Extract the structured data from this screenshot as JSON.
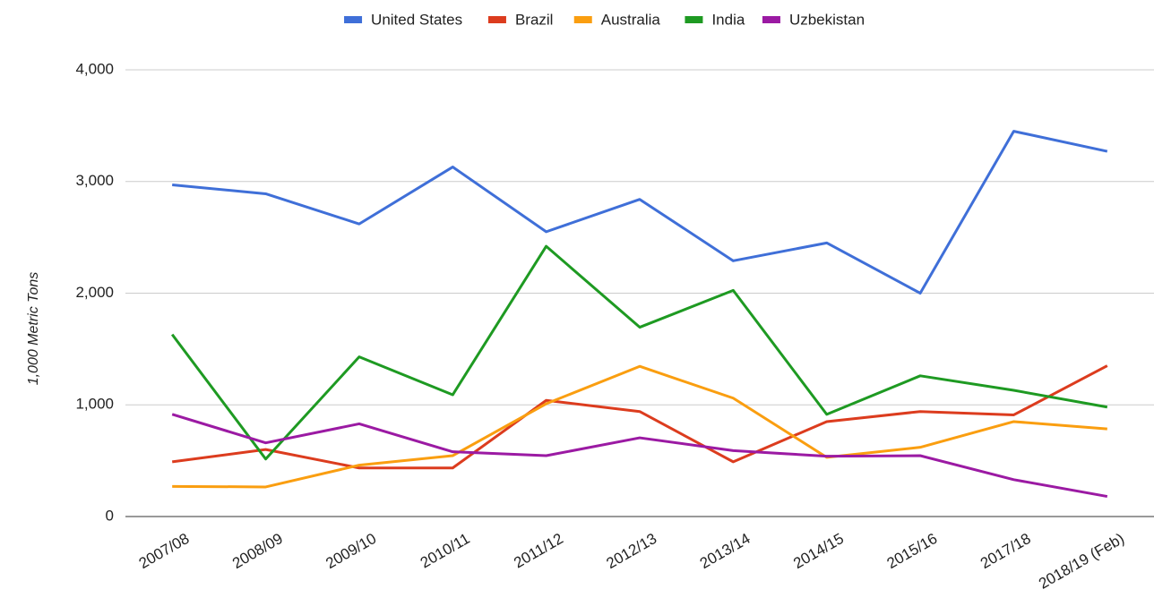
{
  "chart_data": {
    "type": "line",
    "y_label": "1,000 Metric Tons",
    "categories": [
      "2007/08",
      "2008/09",
      "2009/10",
      "2010/11",
      "2011/12",
      "2012/13",
      "2013/14",
      "2014/15",
      "2015/16",
      "2017/18",
      "2018/19 (Feb)"
    ],
    "series": [
      {
        "name": "United States",
        "color": "#3f6fd8",
        "values": [
          2970,
          2890,
          2620,
          3130,
          2550,
          2840,
          2290,
          2450,
          2000,
          3450,
          3270
        ]
      },
      {
        "name": "Brazil",
        "color": "#dc3c1e",
        "values": [
          490,
          600,
          435,
          435,
          1040,
          940,
          490,
          850,
          940,
          910,
          1350
        ]
      },
      {
        "name": "Australia",
        "color": "#fa9e10",
        "values": [
          270,
          265,
          460,
          545,
          1010,
          1345,
          1060,
          530,
          620,
          850,
          785
        ]
      },
      {
        "name": "India",
        "color": "#1e9a22",
        "values": [
          1630,
          515,
          1430,
          1090,
          2420,
          1695,
          2025,
          915,
          1260,
          1130,
          980
        ]
      },
      {
        "name": "Uzbekistan",
        "color": "#9b1aa3",
        "values": [
          915,
          660,
          830,
          580,
          545,
          705,
          590,
          540,
          545,
          330,
          180
        ]
      }
    ],
    "ylim": [
      0,
      4000
    ],
    "yticks": [
      0,
      {
        "value": 1000,
        "label": "1,000"
      },
      {
        "value": 2000,
        "label": "2,000"
      },
      {
        "value": 3000,
        "label": "3,000"
      },
      {
        "value": 4000,
        "label": "4,000"
      }
    ],
    "grid": true,
    "legend": "top"
  }
}
